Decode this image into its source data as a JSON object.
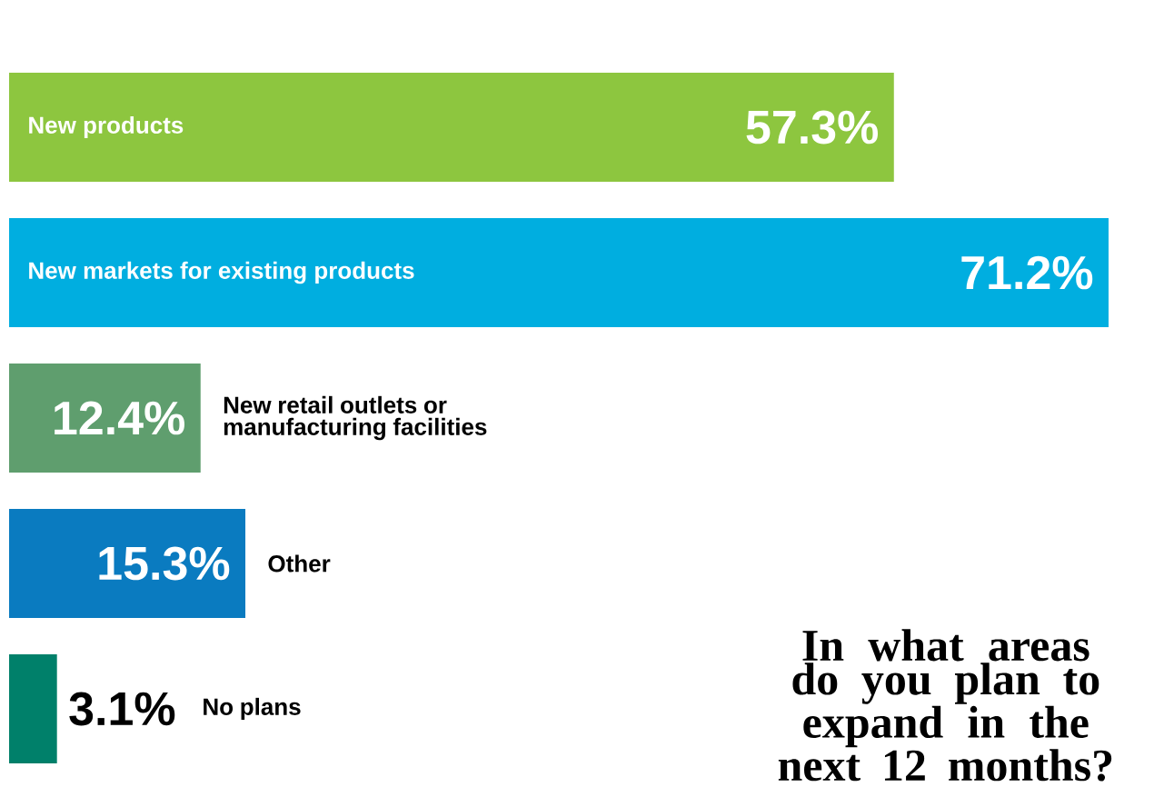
{
  "chart_data": {
    "type": "bar",
    "orientation": "horizontal",
    "title": "In what areas do you plan to expand in the next 12 months?",
    "categories": [
      "New products",
      "New markets for existing products",
      "New retail outlets or manufacturing facilities",
      "Other",
      "No plans"
    ],
    "values": [
      57.3,
      71.2,
      12.4,
      15.3,
      3.1
    ],
    "value_labels": [
      "57.3%",
      "71.2%",
      "12.4%",
      "15.3%",
      "3.1%"
    ],
    "colors": [
      "#8dc63f",
      "#00aee0",
      "#5f9e6e",
      "#0a7bc0",
      "#00806a"
    ]
  }
}
